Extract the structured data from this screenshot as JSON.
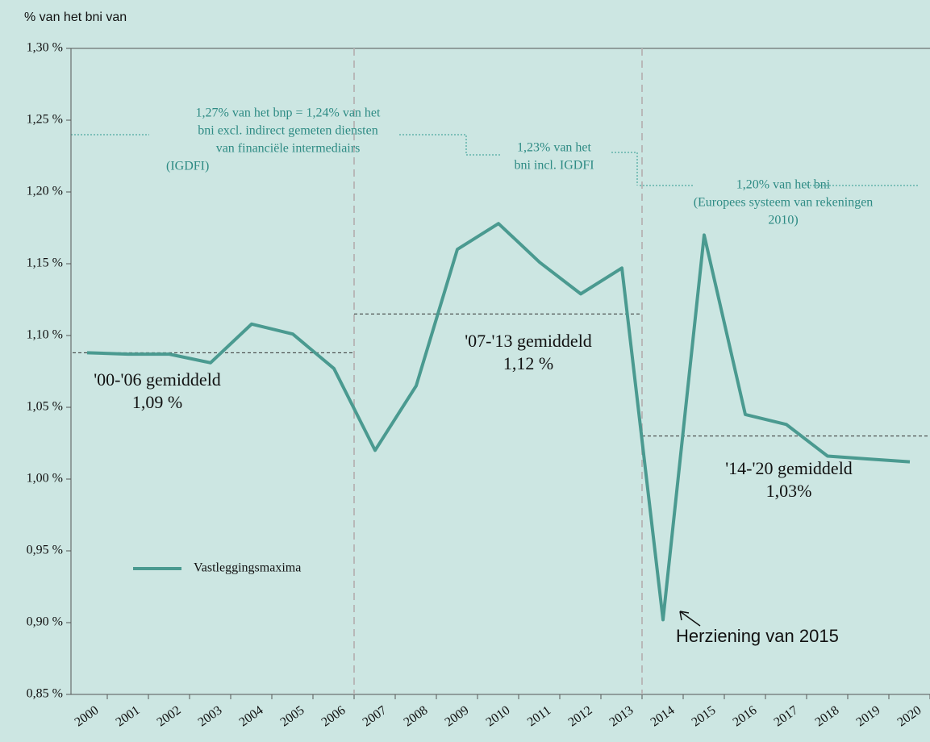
{
  "chart_data": {
    "type": "line",
    "y_axis_label": "% van het bni van",
    "categories": [
      "2000",
      "2001",
      "2002",
      "2003",
      "2004",
      "2005",
      "2006",
      "2007",
      "2008",
      "2009",
      "2010",
      "2011",
      "2012",
      "2013",
      "2014",
      "2015",
      "2016",
      "2017",
      "2018",
      "2019",
      "2020"
    ],
    "series": [
      {
        "name": "Vastleggingsmaxima",
        "color": "#4a9a90",
        "values": [
          1.088,
          1.087,
          1.087,
          1.081,
          1.108,
          1.101,
          1.077,
          1.02,
          1.065,
          1.16,
          1.178,
          1.151,
          1.129,
          1.147,
          0.902,
          1.17,
          1.045,
          1.038,
          1.016,
          1.014,
          1.012
        ]
      }
    ],
    "ylim": [
      0.85,
      1.3
    ],
    "yticks": [
      {
        "value": 0.85,
        "label": "0,85 %"
      },
      {
        "value": 0.9,
        "label": "0,90 %"
      },
      {
        "value": 0.95,
        "label": "0,95 %"
      },
      {
        "value": 1.0,
        "label": "1,00 %"
      },
      {
        "value": 1.05,
        "label": "1,05 %"
      },
      {
        "value": 1.1,
        "label": "1,10 %"
      },
      {
        "value": 1.15,
        "label": "1,15 %"
      },
      {
        "value": 1.2,
        "label": "1,20 %"
      },
      {
        "value": 1.25,
        "label": "1,25 %"
      },
      {
        "value": 1.3,
        "label": "1,30 %"
      }
    ],
    "average_lines": [
      1.088,
      1.115,
      1.03
    ],
    "average_labels": [
      [
        "'00-'06 gemiddeld",
        "1,09 %"
      ],
      [
        "'07-'13 gemiddeld",
        "1,12 %"
      ],
      [
        "'14-'20 gemiddeld",
        "1,03%"
      ]
    ],
    "ceiling_labels": [
      [
        "1,27% van het bnp = 1,24% van het",
        "bni excl. indirect gemeten diensten",
        "van financiële intermediairs",
        "(IGDFI)"
      ],
      [
        "1,23% van het",
        "bni incl. IGDFI"
      ],
      [
        "1,20% van het bni",
        "(Europees systeem van rekeningen",
        "2010)"
      ]
    ],
    "annotation": "Herziening van 2015",
    "legend": "lower-left"
  }
}
